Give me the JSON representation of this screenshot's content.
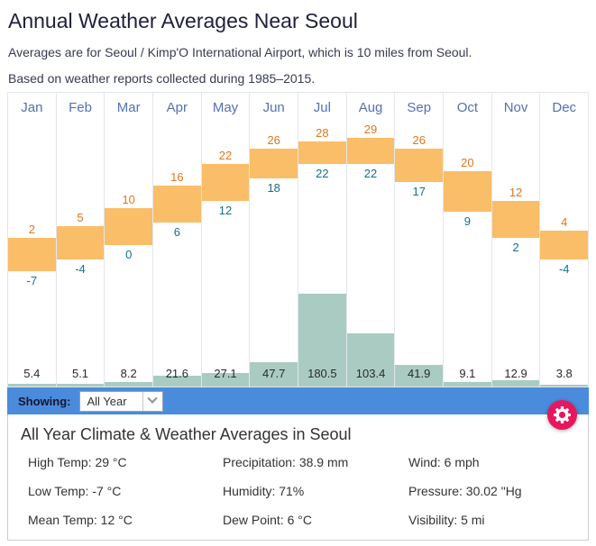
{
  "page": {
    "title": "Annual Weather Averages Near Seoul",
    "subtitle_location": "Averages are for Seoul / Kimp'O International Airport, which is 10 miles from Seoul.",
    "subtitle_period": "Based on weather reports collected during 1985–2015."
  },
  "chart_data": {
    "type": "bar",
    "title": "Annual Weather Averages Near Seoul",
    "categories": [
      "Jan",
      "Feb",
      "Mar",
      "Apr",
      "May",
      "Jun",
      "Jul",
      "Aug",
      "Sep",
      "Oct",
      "Nov",
      "Dec"
    ],
    "series": [
      {
        "name": "High Temp (°C)",
        "values": [
          2,
          5,
          10,
          16,
          22,
          26,
          28,
          29,
          26,
          20,
          12,
          4
        ]
      },
      {
        "name": "Low Temp (°C)",
        "values": [
          -7,
          -4,
          0,
          6,
          12,
          18,
          22,
          22,
          17,
          9,
          2,
          -4
        ]
      },
      {
        "name": "Precipitation (mm)",
        "values": [
          5.4,
          5.1,
          8.2,
          21.6,
          27.1,
          47.7,
          180.5,
          103.4,
          41.9,
          9.1,
          12.9,
          3.8
        ]
      }
    ],
    "temp_axis_range": [
      -10,
      32
    ],
    "grid": false,
    "legend": "none",
    "colors": {
      "temp_bar": "#fabd68",
      "high_label": "#e0751c",
      "low_label": "#12718a",
      "precip_bar": "#aacbc2",
      "precip_label": "#2a2a2a",
      "month_label": "#5272b4"
    }
  },
  "toolbar": {
    "showing_label": "Showing:",
    "dropdown_value": "All Year",
    "bar_color": "#4a8cdb",
    "settings_color": "#e8175d",
    "settings_icon": "gear-icon"
  },
  "summary": {
    "heading": "All Year Climate & Weather Averages in Seoul",
    "items": [
      {
        "label": "High Temp",
        "value": "29 °C"
      },
      {
        "label": "Precipitation",
        "value": "38.9 mm"
      },
      {
        "label": "Wind",
        "value": "6 mph"
      },
      {
        "label": "Low Temp",
        "value": "-7 °C"
      },
      {
        "label": "Humidity",
        "value": "71%"
      },
      {
        "label": "Pressure",
        "value": "30.02 \"Hg"
      },
      {
        "label": "Mean Temp",
        "value": "12 °C"
      },
      {
        "label": "Dew Point",
        "value": "6 °C"
      },
      {
        "label": "Visibility",
        "value": "5 mi"
      }
    ]
  }
}
